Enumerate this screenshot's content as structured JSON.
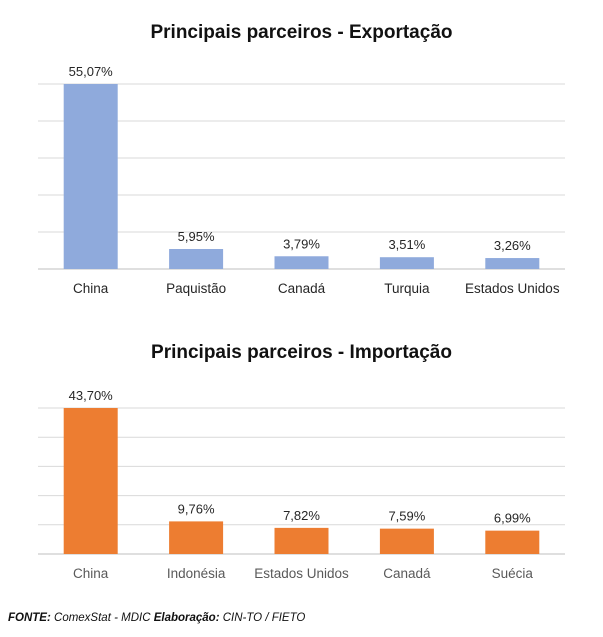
{
  "footer": {
    "fonte_label": "FONTE:",
    "fonte_text": " ComexStat - MDIC ",
    "elaboracao_label": "Elaboração:",
    "elaboracao_text": " CIN-TO / FIETO"
  },
  "chart_data": [
    {
      "type": "bar",
      "title": "Principais parceiros - Exportação",
      "categories": [
        "China",
        "Paquistão",
        "Canadá",
        "Turquia",
        "Estados Unidos"
      ],
      "values": [
        55.07,
        5.95,
        3.79,
        3.51,
        3.26
      ],
      "data_labels": [
        "55,07%",
        "5,95%",
        "3,79%",
        "3,51%",
        "3,26%"
      ],
      "ylim": [
        0,
        55.07
      ],
      "grid": true,
      "color": "#8faadc"
    },
    {
      "type": "bar",
      "title": "Principais parceiros - Importação",
      "categories": [
        "China",
        "Indonésia",
        "Estados Unidos",
        "Canadá",
        "Suécia"
      ],
      "values": [
        43.7,
        9.76,
        7.82,
        7.59,
        6.99
      ],
      "data_labels": [
        "43,70%",
        "9,76%",
        "7,82%",
        "7,59%",
        "6,99%"
      ],
      "ylim": [
        0,
        43.7
      ],
      "grid": true,
      "color": "#ed7d31"
    }
  ]
}
